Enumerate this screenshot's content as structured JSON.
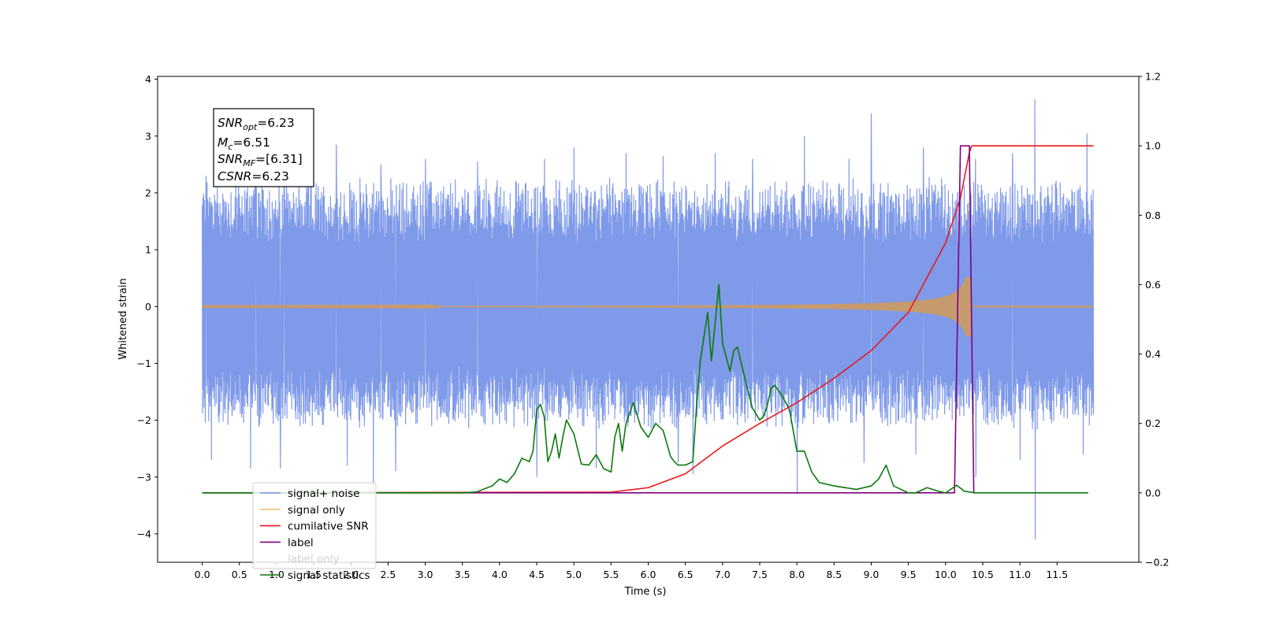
{
  "chart_data": {
    "type": "line",
    "title": "",
    "xlabel": "Time (s)",
    "ylabel": "Whitened strain",
    "y2label": "",
    "xlim": [
      -0.6,
      12.6
    ],
    "ylim": [
      -4.5,
      4.05
    ],
    "y2lim": [
      -0.2,
      1.2
    ],
    "xticks": [
      0.0,
      0.5,
      1.0,
      1.5,
      2.0,
      2.5,
      3.0,
      3.5,
      4.0,
      4.5,
      5.0,
      5.5,
      6.0,
      6.5,
      7.0,
      7.5,
      8.0,
      8.5,
      9.0,
      9.5,
      10.0,
      10.5,
      11.0,
      11.5
    ],
    "xtick_labels": [
      "0.0",
      "0.5",
      "1.0",
      "1.5",
      "2.0",
      "2.5",
      "3.0",
      "3.5",
      "4.0",
      "4.5",
      "5.0",
      "5.5",
      "6.0",
      "6.5",
      "7.0",
      "7.5",
      "8.0",
      "8.5",
      "9.0",
      "9.5",
      "10.0",
      "10.5",
      "11.0",
      "11.5"
    ],
    "yticks": [
      -4,
      -3,
      -2,
      -1,
      0,
      1,
      2,
      3,
      4
    ],
    "ytick_labels": [
      "−4",
      "−3",
      "−2",
      "−1",
      "0",
      "1",
      "2",
      "3",
      "4"
    ],
    "y2ticks": [
      -0.2,
      0.0,
      0.2,
      0.4,
      0.6,
      0.8,
      1.0,
      1.2
    ],
    "y2tick_labels": [
      "−0.2",
      "0.0",
      "0.2",
      "0.4",
      "0.6",
      "0.8",
      "1.0",
      "1.2"
    ],
    "grid": false,
    "legend_position": "lower-left",
    "annotation": {
      "lines": [
        {
          "main": "SNR",
          "sub": "opt",
          "value": "=6.23"
        },
        {
          "main": "M",
          "sub": "c",
          "value": "=6.51"
        },
        {
          "main": "SNR",
          "sub": "MF",
          "value": "=[6.31]"
        },
        {
          "main": "CSNR",
          "sub": "",
          "value": "=6.23"
        }
      ]
    },
    "series": [
      {
        "name": "signal+ noise",
        "axis": "left",
        "color": "#7895e8",
        "envelope": {
          "x_start": 0.0,
          "x_end": 11.99,
          "upper_typical": 2.0,
          "lower_typical": -1.9
        },
        "spikes": [
          [
            0.05,
            2.3
          ],
          [
            0.45,
            2.5
          ],
          [
            0.72,
            2.6
          ],
          [
            1.1,
            2.5
          ],
          [
            1.3,
            2.9
          ],
          [
            1.8,
            2.85
          ],
          [
            2.4,
            2.5
          ],
          [
            3.0,
            2.6
          ],
          [
            3.7,
            2.55
          ],
          [
            4.6,
            2.6
          ],
          [
            5.0,
            2.8
          ],
          [
            5.7,
            2.7
          ],
          [
            6.2,
            2.65
          ],
          [
            6.9,
            2.7
          ],
          [
            7.4,
            2.6
          ],
          [
            8.1,
            3.0
          ],
          [
            8.7,
            2.6
          ],
          [
            9.0,
            3.4
          ],
          [
            9.7,
            2.8
          ],
          [
            10.4,
            2.6
          ],
          [
            10.9,
            2.7
          ],
          [
            11.2,
            3.65
          ],
          [
            11.9,
            3.05
          ],
          [
            0.12,
            -2.7
          ],
          [
            0.65,
            -2.85
          ],
          [
            1.05,
            -2.85
          ],
          [
            1.95,
            -2.8
          ],
          [
            2.3,
            -3.3
          ],
          [
            2.6,
            -2.9
          ],
          [
            4.5,
            -3.0
          ],
          [
            5.3,
            -2.85
          ],
          [
            6.4,
            -2.75
          ],
          [
            6.6,
            -2.95
          ],
          [
            8.0,
            -3.3
          ],
          [
            8.9,
            -2.75
          ],
          [
            9.6,
            -2.6
          ],
          [
            10.4,
            -3.0
          ],
          [
            11.0,
            -2.7
          ],
          [
            11.2,
            -4.1
          ],
          [
            11.85,
            -2.6
          ]
        ]
      },
      {
        "name": "signal only",
        "axis": "left",
        "color": "#c59a6e",
        "chirp": {
          "t_start": 0.0,
          "t_merge": 10.35,
          "amp_max": 0.52,
          "amp_min": 0.004,
          "t_end": 11.99
        }
      },
      {
        "name": "cumilative SNR",
        "axis": "right",
        "color": "#e8181c",
        "x": [
          0.0,
          5.5,
          6.0,
          6.5,
          7.0,
          7.5,
          8.0,
          8.5,
          9.0,
          9.5,
          10.0,
          10.2,
          10.32,
          10.35,
          11.99
        ],
        "values": [
          0.0,
          0.002,
          0.015,
          0.055,
          0.135,
          0.2,
          0.26,
          0.33,
          0.41,
          0.52,
          0.72,
          0.85,
          0.98,
          1.0,
          1.0
        ]
      },
      {
        "name": "label",
        "axis": "right",
        "color": "#800080",
        "x": [
          0.0,
          10.12,
          10.2,
          10.32,
          10.38,
          10.4
        ],
        "values": [
          0.0,
          0.0,
          1.0,
          1.0,
          0.0,
          0.0
        ]
      },
      {
        "name": "label only",
        "axis": "right",
        "color": "#bbbbbb",
        "x": [],
        "values": []
      },
      {
        "name": "signal statistics",
        "axis": "right",
        "color": "#0a7a0a",
        "x": [
          0.0,
          3.5,
          3.7,
          3.8,
          3.9,
          4.0,
          4.1,
          4.2,
          4.3,
          4.4,
          4.45,
          4.5,
          4.55,
          4.6,
          4.65,
          4.7,
          4.75,
          4.8,
          4.85,
          4.9,
          5.0,
          5.1,
          5.2,
          5.3,
          5.35,
          5.4,
          5.5,
          5.55,
          5.6,
          5.65,
          5.7,
          5.8,
          5.9,
          6.0,
          6.1,
          6.2,
          6.3,
          6.35,
          6.4,
          6.5,
          6.6,
          6.65,
          6.7,
          6.75,
          6.8,
          6.85,
          6.9,
          6.95,
          7.0,
          7.05,
          7.1,
          7.15,
          7.2,
          7.3,
          7.4,
          7.5,
          7.55,
          7.6,
          7.65,
          7.7,
          7.8,
          7.9,
          8.0,
          8.1,
          8.2,
          8.3,
          8.5,
          8.8,
          9.0,
          9.05,
          9.1,
          9.2,
          9.3,
          9.4,
          9.5,
          9.6,
          9.75,
          9.9,
          10.0,
          10.15,
          10.25,
          10.4,
          11.0,
          11.92
        ],
        "values": [
          0.0,
          0.0,
          0.003,
          0.012,
          0.02,
          0.04,
          0.03,
          0.055,
          0.1,
          0.09,
          0.12,
          0.24,
          0.255,
          0.22,
          0.09,
          0.12,
          0.17,
          0.1,
          0.16,
          0.21,
          0.17,
          0.083,
          0.08,
          0.11,
          0.09,
          0.07,
          0.06,
          0.16,
          0.2,
          0.12,
          0.2,
          0.26,
          0.19,
          0.16,
          0.2,
          0.18,
          0.105,
          0.09,
          0.08,
          0.08,
          0.09,
          0.25,
          0.38,
          0.45,
          0.52,
          0.38,
          0.49,
          0.6,
          0.43,
          0.39,
          0.35,
          0.41,
          0.42,
          0.33,
          0.245,
          0.21,
          0.22,
          0.25,
          0.3,
          0.31,
          0.28,
          0.24,
          0.12,
          0.12,
          0.06,
          0.03,
          0.02,
          0.01,
          0.02,
          0.03,
          0.04,
          0.08,
          0.02,
          0.01,
          0.0,
          0.0,
          0.015,
          0.005,
          0.0,
          0.022,
          0.005,
          0.0,
          0.0,
          0.0
        ]
      }
    ]
  }
}
